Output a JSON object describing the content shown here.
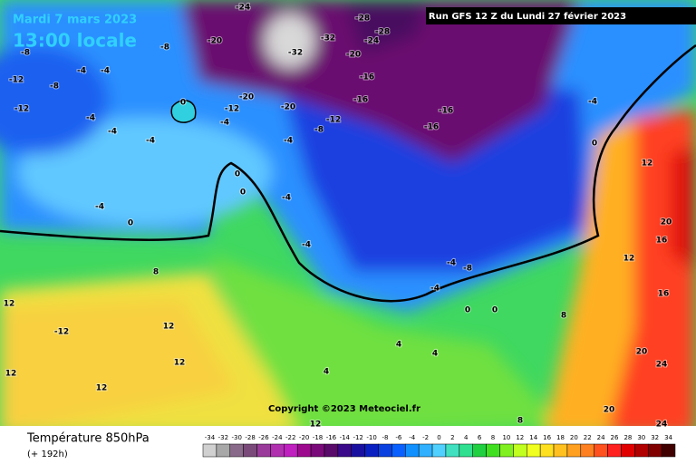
{
  "map": {
    "date": "Mardi 7 mars 2023",
    "local_time": "13:00 locale",
    "run": "Run GFS 12 Z du Lundi 27 février 2023",
    "copyright": "Copyright ©2023 Meteociel.fr",
    "variable": "Température 850hPa",
    "lead_time": "(+ 192h)",
    "contour_labels": [
      -24,
      -28,
      -28,
      -32,
      -32,
      -20,
      -24,
      -20,
      -16,
      -16,
      -20,
      -20,
      -12,
      -12,
      -8,
      -16,
      -16,
      -8,
      -8,
      -4,
      -4,
      -8,
      -12,
      -12,
      -4,
      -4,
      0,
      -4,
      -4,
      -4,
      0,
      0,
      -4,
      -4,
      0,
      -4,
      -4,
      -8,
      -4,
      0,
      12,
      20,
      16,
      12,
      8,
      12,
      12,
      -12,
      12,
      12,
      12,
      4,
      4,
      8,
      16,
      20,
      24,
      20,
      24,
      8,
      12,
      4,
      0,
      0,
      -4
    ],
    "scale": {
      "values": [
        -34,
        -32,
        -30,
        -28,
        -26,
        -24,
        -22,
        -20,
        -18,
        -16,
        -14,
        -12,
        -10,
        -8,
        -6,
        -4,
        -2,
        0,
        2,
        4,
        6,
        8,
        10,
        12,
        14,
        16,
        18,
        20,
        22,
        24,
        26,
        28,
        30,
        32,
        34
      ],
      "colors": [
        "#d0d0d0",
        "#a8a8a8",
        "#8a6a8a",
        "#7a4a7a",
        "#9a3a9a",
        "#b030b0",
        "#c020c0",
        "#9e0a8e",
        "#7a0a7a",
        "#5a0a6a",
        "#3a0a8a",
        "#1a10a0",
        "#0a20c0",
        "#0a40e0",
        "#0a60ff",
        "#1090ff",
        "#30b0ff",
        "#50d0ff",
        "#40e0c0",
        "#30e090",
        "#20d040",
        "#40e020",
        "#80f020",
        "#c0ff20",
        "#f0ff20",
        "#ffe020",
        "#ffc020",
        "#ffa020",
        "#ff8020",
        "#ff5020",
        "#ff2020",
        "#e00000",
        "#b00000",
        "#800000",
        "#400000"
      ]
    }
  }
}
